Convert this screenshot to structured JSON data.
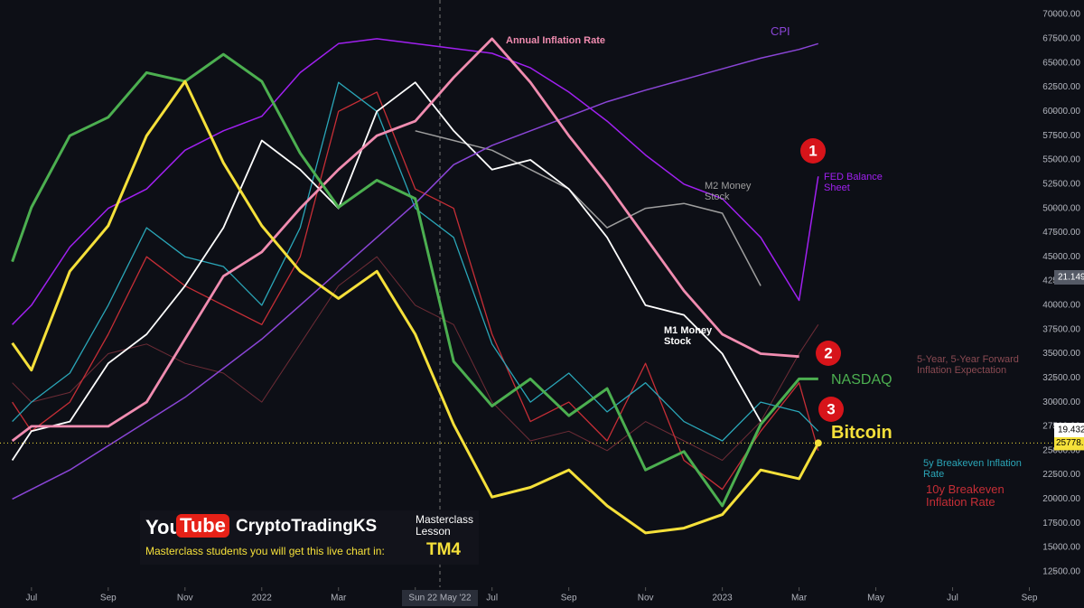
{
  "chart_data": {
    "type": "line",
    "x": [
      -0.5,
      0,
      1,
      2,
      3,
      4,
      5,
      6,
      7,
      8,
      9,
      10,
      11,
      12,
      13,
      14,
      15,
      16,
      17,
      18,
      19,
      20,
      20.5
    ],
    "xlim": [
      -0.82,
      26.6
    ],
    "xticks": [
      {
        "value": 0,
        "label": "Jul"
      },
      {
        "value": 2,
        "label": "Sep"
      },
      {
        "value": 4,
        "label": "Nov"
      },
      {
        "value": 6,
        "label": "2022"
      },
      {
        "value": 8,
        "label": "Mar"
      },
      {
        "value": 10,
        "label": "May"
      },
      {
        "value": 12,
        "label": "Jul"
      },
      {
        "value": 14,
        "label": "Sep"
      },
      {
        "value": 16,
        "label": "Nov"
      },
      {
        "value": 18,
        "label": "2023"
      },
      {
        "value": 20,
        "label": "Mar"
      },
      {
        "value": 22,
        "label": "May"
      },
      {
        "value": 24,
        "label": "Jul"
      },
      {
        "value": 26,
        "label": "Sep"
      }
    ],
    "ylim": [
      10900,
      71500
    ],
    "yticks": [
      {
        "value": 12500,
        "label": "12500.00"
      },
      {
        "value": 15000,
        "label": "15000.00"
      },
      {
        "value": 17500,
        "label": "17500.00"
      },
      {
        "value": 20000,
        "label": "20000.00"
      },
      {
        "value": 22500,
        "label": "22500.00"
      },
      {
        "value": 25000,
        "label": "25000.00"
      },
      {
        "value": 27500,
        "label": "27500.00"
      },
      {
        "value": 30000,
        "label": "30000.00"
      },
      {
        "value": 32500,
        "label": "32500.00"
      },
      {
        "value": 35000,
        "label": "35000.00"
      },
      {
        "value": 37500,
        "label": "37500.00"
      },
      {
        "value": 40000,
        "label": "40000.00"
      },
      {
        "value": 42500,
        "label": "42500.00"
      },
      {
        "value": 45000,
        "label": "45000.00"
      },
      {
        "value": 47500,
        "label": "47500.00"
      },
      {
        "value": 50000,
        "label": "50000.00"
      },
      {
        "value": 52500,
        "label": "52500.00"
      },
      {
        "value": 55000,
        "label": "55000.00"
      },
      {
        "value": 57500,
        "label": "57500.00"
      },
      {
        "value": 60000,
        "label": "60000.00"
      },
      {
        "value": 62500,
        "label": "62500.00"
      },
      {
        "value": 65000,
        "label": "65000.00"
      },
      {
        "value": 67500,
        "label": "67500.00"
      },
      {
        "value": 70000,
        "label": "70000.00"
      }
    ],
    "series": [
      {
        "name": "5-Year, 5-Year Forward Inflation Expectation",
        "color": "#6e2c36",
        "values": [
          32000,
          30000,
          31000,
          35000,
          36000,
          34000,
          33000,
          30000,
          36000,
          42000,
          45000,
          40000,
          38000,
          30000,
          26000,
          27000,
          25000,
          28000,
          26000,
          24000,
          28000,
          35000,
          38000
        ]
      },
      {
        "name": "10y Breakeven Inflation Rate",
        "color": "#c62e36",
        "values": [
          30000,
          27000,
          30000,
          37000,
          45000,
          42000,
          40000,
          38000,
          45000,
          60000,
          62000,
          52000,
          50000,
          37000,
          28000,
          30000,
          26000,
          34000,
          24000,
          21000,
          27000,
          32000,
          25000
        ]
      },
      {
        "name": "5y Breakeven Inflation Rate",
        "color": "#2aa6b8",
        "values": [
          28000,
          30000,
          33000,
          40000,
          48000,
          45000,
          44000,
          40000,
          48000,
          63000,
          60000,
          50000,
          47000,
          36000,
          30000,
          33000,
          29000,
          32000,
          28000,
          26000,
          30000,
          29000,
          27000
        ]
      },
      {
        "name": "M2 Money Stock",
        "color": "#9e9e9e",
        "values": [
          null,
          null,
          null,
          null,
          null,
          null,
          null,
          null,
          null,
          null,
          null,
          58000,
          57000,
          56000,
          54000,
          52000,
          48000,
          50000,
          50500,
          49500,
          42000,
          null,
          null
        ]
      },
      {
        "name": "M1 Money Stock",
        "color": "#ffffff",
        "values": [
          24000,
          27000,
          28000,
          34000,
          37000,
          42000,
          48000,
          57000,
          54000,
          50000,
          60000,
          63000,
          58000,
          54000,
          55000,
          52000,
          47000,
          40000,
          39000,
          35000,
          28000,
          null,
          null
        ]
      },
      {
        "name": "CPI",
        "color": "#8a45d6",
        "values": [
          20000,
          21000,
          23000,
          25500,
          28000,
          30500,
          33500,
          36500,
          40000,
          43500,
          47000,
          50500,
          54500,
          56500,
          58000,
          59500,
          61000,
          62200,
          63300,
          64400,
          65500,
          66400,
          67000
        ]
      },
      {
        "name": "FED Balance Sheet",
        "color": "#a020f0",
        "values": [
          38000,
          40000,
          46000,
          50000,
          52000,
          56000,
          58000,
          59500,
          64000,
          67000,
          67500,
          67000,
          66500,
          66000,
          64500,
          62000,
          59000,
          55500,
          52500,
          51000,
          47000,
          40500,
          53300
        ]
      },
      {
        "name": "Annual Inflation Rate",
        "color": "#f08cb0",
        "values": [
          26000,
          27500,
          27500,
          27500,
          30000,
          36500,
          43000,
          45500,
          50000,
          54000,
          57500,
          59000,
          63500,
          67500,
          63000,
          57500,
          52500,
          47000,
          41500,
          37000,
          35000,
          34700,
          null
        ]
      },
      {
        "name": "NASDAQ",
        "color": "#4caf50",
        "values": [
          44500,
          50100,
          57500,
          59400,
          64000,
          63100,
          65900,
          63100,
          55700,
          50100,
          52900,
          51000,
          34200,
          29600,
          32400,
          28600,
          31400,
          23000,
          24900,
          19300,
          27700,
          32400,
          32400
        ]
      },
      {
        "name": "Bitcoin",
        "color": "#f5e03a",
        "values": [
          36100,
          33300,
          43500,
          48200,
          57500,
          63100,
          54700,
          48200,
          43500,
          40700,
          43500,
          37000,
          27700,
          20200,
          21200,
          23000,
          19300,
          16500,
          17000,
          18400,
          23000,
          22100,
          25778.58
        ]
      }
    ],
    "axis_badges": [
      "21.149T",
      "19.432T"
    ],
    "crosshair_label": "Sun 22 May '22",
    "markers": [
      "1",
      "2",
      "3"
    ],
    "banner": {
      "logo_a": "You",
      "logo_b": "Tube",
      "channel": "CryptoTradingKS",
      "lesson": "Masterclass Lesson",
      "note": "Masterclass students you will get this live chart in:",
      "code": "TM4"
    }
  }
}
